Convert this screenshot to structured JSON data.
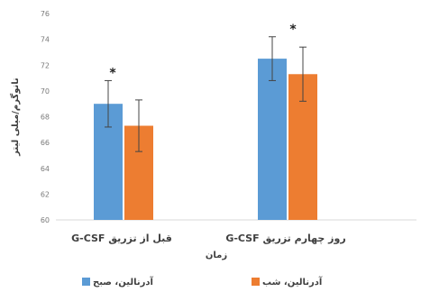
{
  "chart_data": {
    "type": "bar",
    "categories": [
      "قبل از تزریق G-CSF",
      "روز چهارم تزریق G-CSF"
    ],
    "series": [
      {
        "name": "آدرنالین، صبح",
        "color": "#5b9bd5",
        "values": [
          69.0,
          72.5
        ],
        "errors": [
          1.8,
          1.7
        ]
      },
      {
        "name": "آدرنالین، شب",
        "color": "#ed7d31",
        "values": [
          67.3,
          71.3
        ],
        "errors": [
          2.0,
          2.1
        ]
      }
    ],
    "significance": [
      "*",
      "*"
    ],
    "ylim": [
      60,
      76
    ],
    "yticks": [
      "60",
      "62",
      "64",
      "66",
      "68",
      "70",
      "72",
      "74",
      "76"
    ],
    "ylabel": "نانوگرم/میلی لیتر",
    "xlabel": "زمان",
    "grid": false,
    "legend_position": "bottom"
  }
}
